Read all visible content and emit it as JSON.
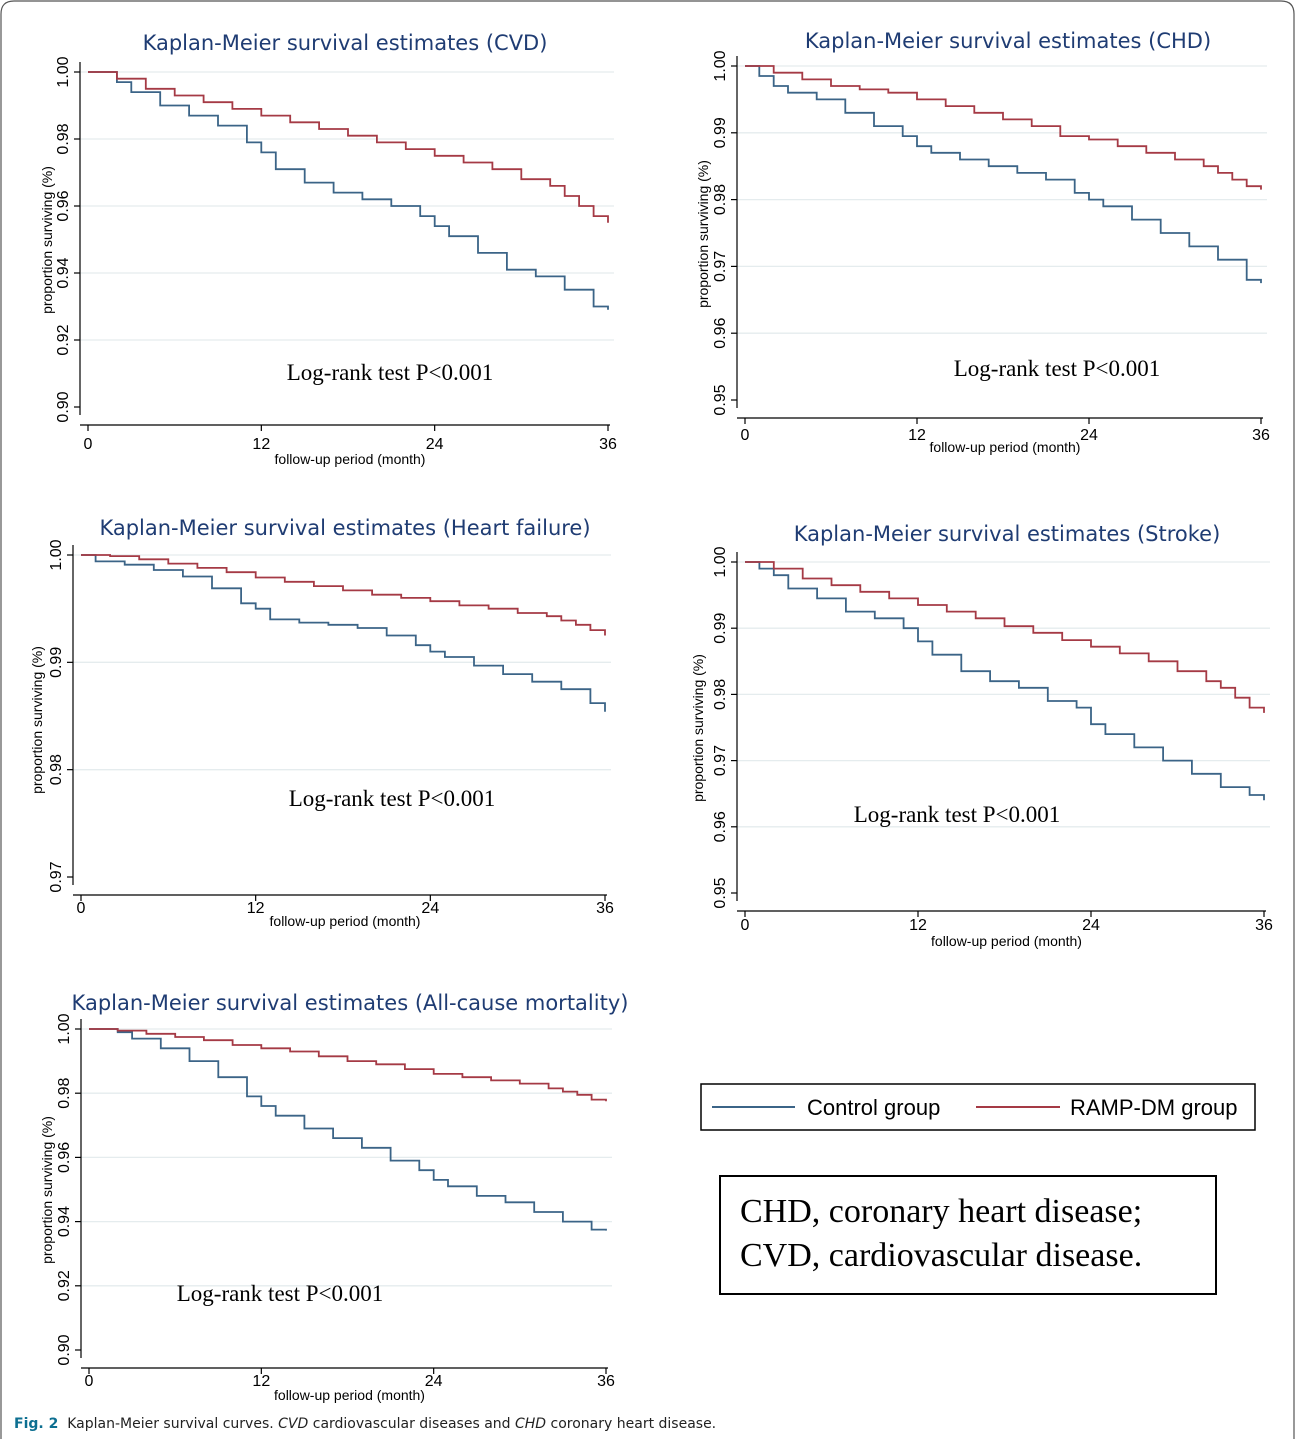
{
  "colors": {
    "control": "#3b6487",
    "ramp": "#a53a45",
    "title": "#1f3c73",
    "grid": "#e5ecee",
    "caption_accent": "#0d6f91"
  },
  "chart_data": [
    {
      "type": "line",
      "title": "Kaplan-Meier survival estimates (CVD)",
      "xlabel": "follow-up period (month)",
      "ylabel": "proportion surviving (%)",
      "xlim": [
        0,
        36
      ],
      "ylim": [
        0.9,
        1.0
      ],
      "xticks": [
        "0",
        "12",
        "24",
        "36"
      ],
      "yticks": [
        "0.90",
        "0.92",
        "0.94",
        "0.96",
        "0.98",
        "1.00"
      ],
      "annotation": "Log-rank test P<0.001",
      "grid": true,
      "series": [
        {
          "key": "control",
          "x": [
            0,
            2,
            3,
            5,
            7,
            9,
            11,
            12,
            13,
            15,
            17,
            19,
            21,
            23,
            24,
            25,
            27,
            29,
            31,
            33,
            35,
            36
          ],
          "values": [
            1.0,
            0.997,
            0.994,
            0.99,
            0.987,
            0.984,
            0.979,
            0.976,
            0.971,
            0.967,
            0.964,
            0.962,
            0.96,
            0.957,
            0.954,
            0.951,
            0.946,
            0.941,
            0.939,
            0.935,
            0.93,
            0.929
          ]
        },
        {
          "key": "ramp",
          "x": [
            0,
            2,
            4,
            6,
            8,
            10,
            12,
            14,
            16,
            18,
            20,
            22,
            24,
            26,
            28,
            30,
            32,
            33,
            34,
            35,
            36
          ],
          "values": [
            1.0,
            0.998,
            0.995,
            0.993,
            0.991,
            0.989,
            0.987,
            0.985,
            0.983,
            0.981,
            0.979,
            0.977,
            0.975,
            0.973,
            0.971,
            0.968,
            0.966,
            0.963,
            0.96,
            0.957,
            0.955
          ]
        }
      ]
    },
    {
      "type": "line",
      "title": "Kaplan-Meier survival estimates (CHD)",
      "xlabel": "follow-up period (month)",
      "ylabel": "proportion surviving (%)",
      "xlim": [
        0,
        36
      ],
      "ylim": [
        0.95,
        1.0
      ],
      "xticks": [
        "0",
        "12",
        "24",
        "36"
      ],
      "yticks": [
        "0.95",
        "0.96",
        "0.97",
        "0.98",
        "0.99",
        "1.00"
      ],
      "annotation": "Log-rank test P<0.001",
      "grid": true,
      "series": [
        {
          "key": "control",
          "x": [
            0,
            1,
            2,
            3,
            5,
            7,
            9,
            11,
            12,
            13,
            15,
            17,
            19,
            21,
            23,
            24,
            25,
            27,
            29,
            31,
            33,
            35,
            36
          ],
          "values": [
            1.0,
            0.9985,
            0.997,
            0.996,
            0.995,
            0.993,
            0.991,
            0.9895,
            0.988,
            0.987,
            0.986,
            0.985,
            0.984,
            0.983,
            0.981,
            0.98,
            0.979,
            0.977,
            0.975,
            0.973,
            0.971,
            0.968,
            0.9675
          ]
        },
        {
          "key": "ramp",
          "x": [
            0,
            2,
            4,
            6,
            8,
            10,
            12,
            14,
            16,
            18,
            20,
            22,
            24,
            26,
            28,
            30,
            32,
            33,
            34,
            35,
            36
          ],
          "values": [
            1.0,
            0.999,
            0.998,
            0.997,
            0.9965,
            0.996,
            0.995,
            0.994,
            0.993,
            0.992,
            0.991,
            0.9895,
            0.989,
            0.988,
            0.987,
            0.986,
            0.985,
            0.984,
            0.983,
            0.982,
            0.9815
          ]
        }
      ]
    },
    {
      "type": "line",
      "title": "Kaplan-Meier survival estimates (Heart failure)",
      "xlabel": "follow-up period (month)",
      "ylabel": "proportion surviving (%)",
      "xlim": [
        0,
        36
      ],
      "ylim": [
        0.97,
        1.0
      ],
      "xticks": [
        "0",
        "12",
        "24",
        "36"
      ],
      "yticks": [
        "0.97",
        "0.98",
        "0.99",
        "1.00"
      ],
      "annotation": "Log-rank test P<0.001",
      "grid": true,
      "series": [
        {
          "key": "control",
          "x": [
            0,
            1,
            3,
            5,
            7,
            9,
            11,
            12,
            13,
            15,
            17,
            19,
            21,
            23,
            24,
            25,
            27,
            29,
            31,
            33,
            35,
            36
          ],
          "values": [
            1.0,
            0.9994,
            0.9991,
            0.9986,
            0.998,
            0.9969,
            0.9955,
            0.995,
            0.994,
            0.9937,
            0.9935,
            0.9932,
            0.9925,
            0.9916,
            0.991,
            0.9905,
            0.9897,
            0.9889,
            0.9882,
            0.9875,
            0.9862,
            0.9854
          ]
        },
        {
          "key": "ramp",
          "x": [
            0,
            2,
            4,
            6,
            8,
            10,
            12,
            14,
            16,
            18,
            20,
            22,
            24,
            26,
            28,
            30,
            32,
            33,
            34,
            35,
            36
          ],
          "values": [
            1.0,
            0.9999,
            0.9996,
            0.9992,
            0.9988,
            0.9984,
            0.9979,
            0.9975,
            0.9971,
            0.9967,
            0.9963,
            0.996,
            0.9957,
            0.9953,
            0.995,
            0.9946,
            0.9943,
            0.9939,
            0.9935,
            0.993,
            0.9925
          ]
        }
      ]
    },
    {
      "type": "line",
      "title": "Kaplan-Meier survival estimates (Stroke)",
      "xlabel": "follow-up period (month)",
      "ylabel": "proportion surviving (%)",
      "xlim": [
        0,
        36
      ],
      "ylim": [
        0.95,
        1.0
      ],
      "xticks": [
        "0",
        "12",
        "24",
        "36"
      ],
      "yticks": [
        "0.95",
        "0.96",
        "0.97",
        "0.98",
        "0.99",
        "1.00"
      ],
      "annotation": "Log-rank test P<0.001",
      "grid": true,
      "series": [
        {
          "key": "control",
          "x": [
            0,
            1,
            2,
            3,
            5,
            7,
            9,
            11,
            12,
            13,
            15,
            17,
            19,
            21,
            23,
            24,
            25,
            27,
            29,
            31,
            33,
            35,
            36
          ],
          "values": [
            1.0,
            0.999,
            0.998,
            0.996,
            0.9945,
            0.9925,
            0.9915,
            0.99,
            0.988,
            0.986,
            0.9835,
            0.982,
            0.981,
            0.979,
            0.978,
            0.9755,
            0.974,
            0.972,
            0.97,
            0.968,
            0.966,
            0.9648,
            0.964
          ]
        },
        {
          "key": "ramp",
          "x": [
            0,
            2,
            4,
            6,
            8,
            10,
            12,
            14,
            16,
            18,
            20,
            22,
            24,
            26,
            28,
            30,
            32,
            33,
            34,
            35,
            36
          ],
          "values": [
            1.0,
            0.999,
            0.9975,
            0.9965,
            0.9955,
            0.9945,
            0.9935,
            0.9925,
            0.9915,
            0.9903,
            0.9893,
            0.9882,
            0.9872,
            0.9862,
            0.985,
            0.9835,
            0.982,
            0.981,
            0.9795,
            0.978,
            0.9772
          ]
        }
      ]
    },
    {
      "type": "line",
      "title": "Kaplan-Meier survival estimates (All-cause mortality)",
      "xlabel": "follow-up period (month)",
      "ylabel": "proportion surviving (%)",
      "xlim": [
        0,
        36
      ],
      "ylim": [
        0.9,
        1.0
      ],
      "xticks": [
        "0",
        "12",
        "24",
        "36"
      ],
      "yticks": [
        "0.90",
        "0.92",
        "0.94",
        "0.96",
        "0.98",
        "1.00"
      ],
      "annotation": "Log-rank test P<0.001",
      "grid": true,
      "series": [
        {
          "key": "control",
          "x": [
            0,
            2,
            3,
            5,
            7,
            9,
            11,
            12,
            13,
            15,
            17,
            19,
            21,
            23,
            24,
            25,
            27,
            29,
            31,
            33,
            35,
            36
          ],
          "values": [
            1.0,
            0.999,
            0.997,
            0.994,
            0.99,
            0.985,
            0.979,
            0.976,
            0.973,
            0.969,
            0.966,
            0.963,
            0.959,
            0.956,
            0.953,
            0.951,
            0.948,
            0.946,
            0.943,
            0.94,
            0.9375,
            0.9372
          ]
        },
        {
          "key": "ramp",
          "x": [
            0,
            2,
            4,
            6,
            8,
            10,
            12,
            14,
            16,
            18,
            20,
            22,
            24,
            26,
            28,
            30,
            32,
            33,
            34,
            35,
            36
          ],
          "values": [
            1.0,
            0.9995,
            0.9985,
            0.9975,
            0.9965,
            0.995,
            0.994,
            0.993,
            0.9915,
            0.99,
            0.989,
            0.9875,
            0.986,
            0.985,
            0.984,
            0.983,
            0.9815,
            0.9805,
            0.9795,
            0.978,
            0.9775
          ]
        }
      ]
    }
  ],
  "legend": {
    "items": [
      {
        "key": "control",
        "label": "Control group"
      },
      {
        "key": "ramp",
        "label": "RAMP-DM group"
      }
    ]
  },
  "abbreviations": {
    "line1": "CHD, coronary heart disease;",
    "line2": "CVD, cardiovascular disease."
  },
  "caption": {
    "label": "Fig. 2",
    "text_a": "  Kaplan-Meier survival curves. ",
    "abbr1": "CVD",
    "text_b": " cardiovascular diseases and ",
    "abbr2": "CHD",
    "text_c": " coronary heart disease."
  }
}
